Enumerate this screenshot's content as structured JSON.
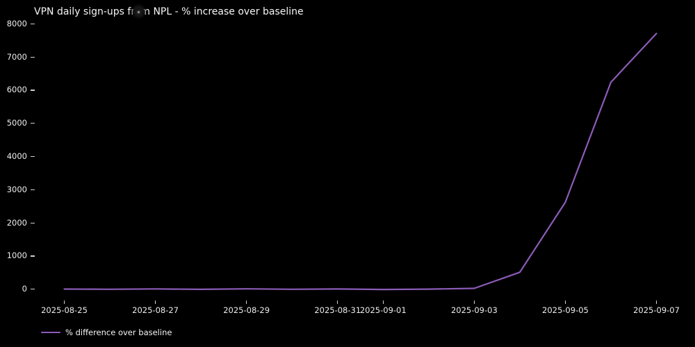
{
  "title": "VPN daily sign-ups from NPL - % increase over baseline",
  "colors": {
    "background": "#000000",
    "line": "#8c5cb8",
    "text": "#f5f5f5",
    "tick": "#cfcfcf"
  },
  "legend": {
    "label": "% difference over baseline"
  },
  "chart_data": {
    "type": "line",
    "title": "VPN daily sign-ups from NPL - % increase over baseline",
    "xlabel": "",
    "ylabel": "",
    "x": [
      "2025-08-25",
      "2025-08-26",
      "2025-08-27",
      "2025-08-28",
      "2025-08-29",
      "2025-08-30",
      "2025-08-31",
      "2025-09-01",
      "2025-09-02",
      "2025-09-03",
      "2025-09-04",
      "2025-09-05",
      "2025-09-06",
      "2025-09-07"
    ],
    "series": [
      {
        "name": "% difference over baseline",
        "values": [
          5,
          -3,
          8,
          -5,
          10,
          -2,
          6,
          -8,
          3,
          25,
          510,
          2620,
          6240,
          7710
        ]
      }
    ],
    "ylim": [
      0,
      8000
    ],
    "y_ticks": [
      0,
      1000,
      2000,
      3000,
      4000,
      5000,
      6000,
      7000,
      8000
    ],
    "x_tick_labels": [
      "2025-08-25",
      "2025-08-27",
      "2025-08-29",
      "2025-08-31",
      "2025-09-01",
      "2025-09-03",
      "2025-09-05",
      "2025-09-07"
    ],
    "grid": false,
    "legend_position": "lower left, below axis",
    "line_color": "#8c5cb8"
  }
}
